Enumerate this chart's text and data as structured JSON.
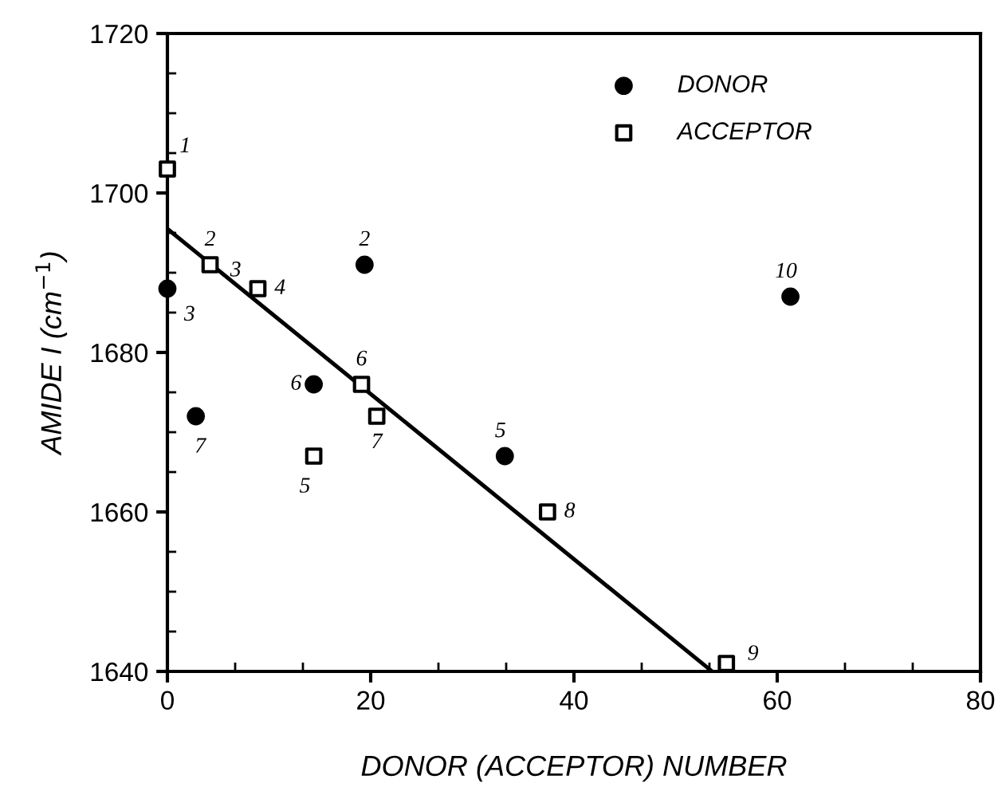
{
  "chart_data": {
    "type": "scatter",
    "xlabel": "DONOR (ACCEPTOR) NUMBER",
    "ylabel": "AMIDE I (cm$^{−1}$)",
    "xlim": [
      0,
      80
    ],
    "xticks": [
      0,
      20,
      40,
      60,
      80
    ],
    "ylim": [
      1640,
      1720
    ],
    "yticks": [
      1640,
      1660,
      1680,
      1700,
      1720
    ],
    "grid": false,
    "legend": "top right",
    "series": [
      {
        "name": "DONOR",
        "color": "#000000",
        "marker": "circle",
        "x": [
          0,
          2.8,
          14.4,
          19.4,
          33.2,
          61.3
        ],
        "values": [
          1688,
          1672,
          1676,
          1691,
          1667,
          1687
        ]
      },
      {
        "name": "ACCEPTOR",
        "color": "#000000",
        "marker": "square",
        "x": [
          0,
          4.2,
          8.9,
          19.1,
          20.6,
          14.4,
          37.4,
          55
        ],
        "values": [
          1703,
          1691,
          1688,
          1676,
          1672,
          1667,
          1660,
          1641
        ]
      },
      {
        "type": "line",
        "color": "#000000",
        "marker": "none",
        "line_style": "solid",
        "x": [
          0,
          53.6
        ],
        "values": [
          1695.5,
          1640
        ]
      }
    ],
    "annotations": [
      {
        "text": "3",
        "x": 0,
        "y": 1688
      },
      {
        "text": "7",
        "x": 2.8,
        "y": 1672
      },
      {
        "text": "6",
        "x": 14.4,
        "y": 1676
      },
      {
        "text": "2",
        "x": 19.4,
        "y": 1691
      },
      {
        "text": "5",
        "x": 33.2,
        "y": 1667
      },
      {
        "text": "10",
        "x": 61.3,
        "y": 1687
      },
      {
        "text": "1",
        "x": 0,
        "y": 1703
      },
      {
        "text": "2",
        "x": 4.2,
        "y": 1691
      },
      {
        "text": "3",
        "x": 8.9,
        "y": 1688
      },
      {
        "text": "4",
        "x": 8.9,
        "y": 1688
      },
      {
        "text": "6",
        "x": 19.1,
        "y": 1676
      },
      {
        "text": "7",
        "x": 20.6,
        "y": 1672
      },
      {
        "text": "5",
        "x": 14.4,
        "y": 1667
      },
      {
        "text": "8",
        "x": 37.4,
        "y": 1660
      },
      {
        "text": "9",
        "x": 55,
        "y": 1641
      }
    ]
  }
}
